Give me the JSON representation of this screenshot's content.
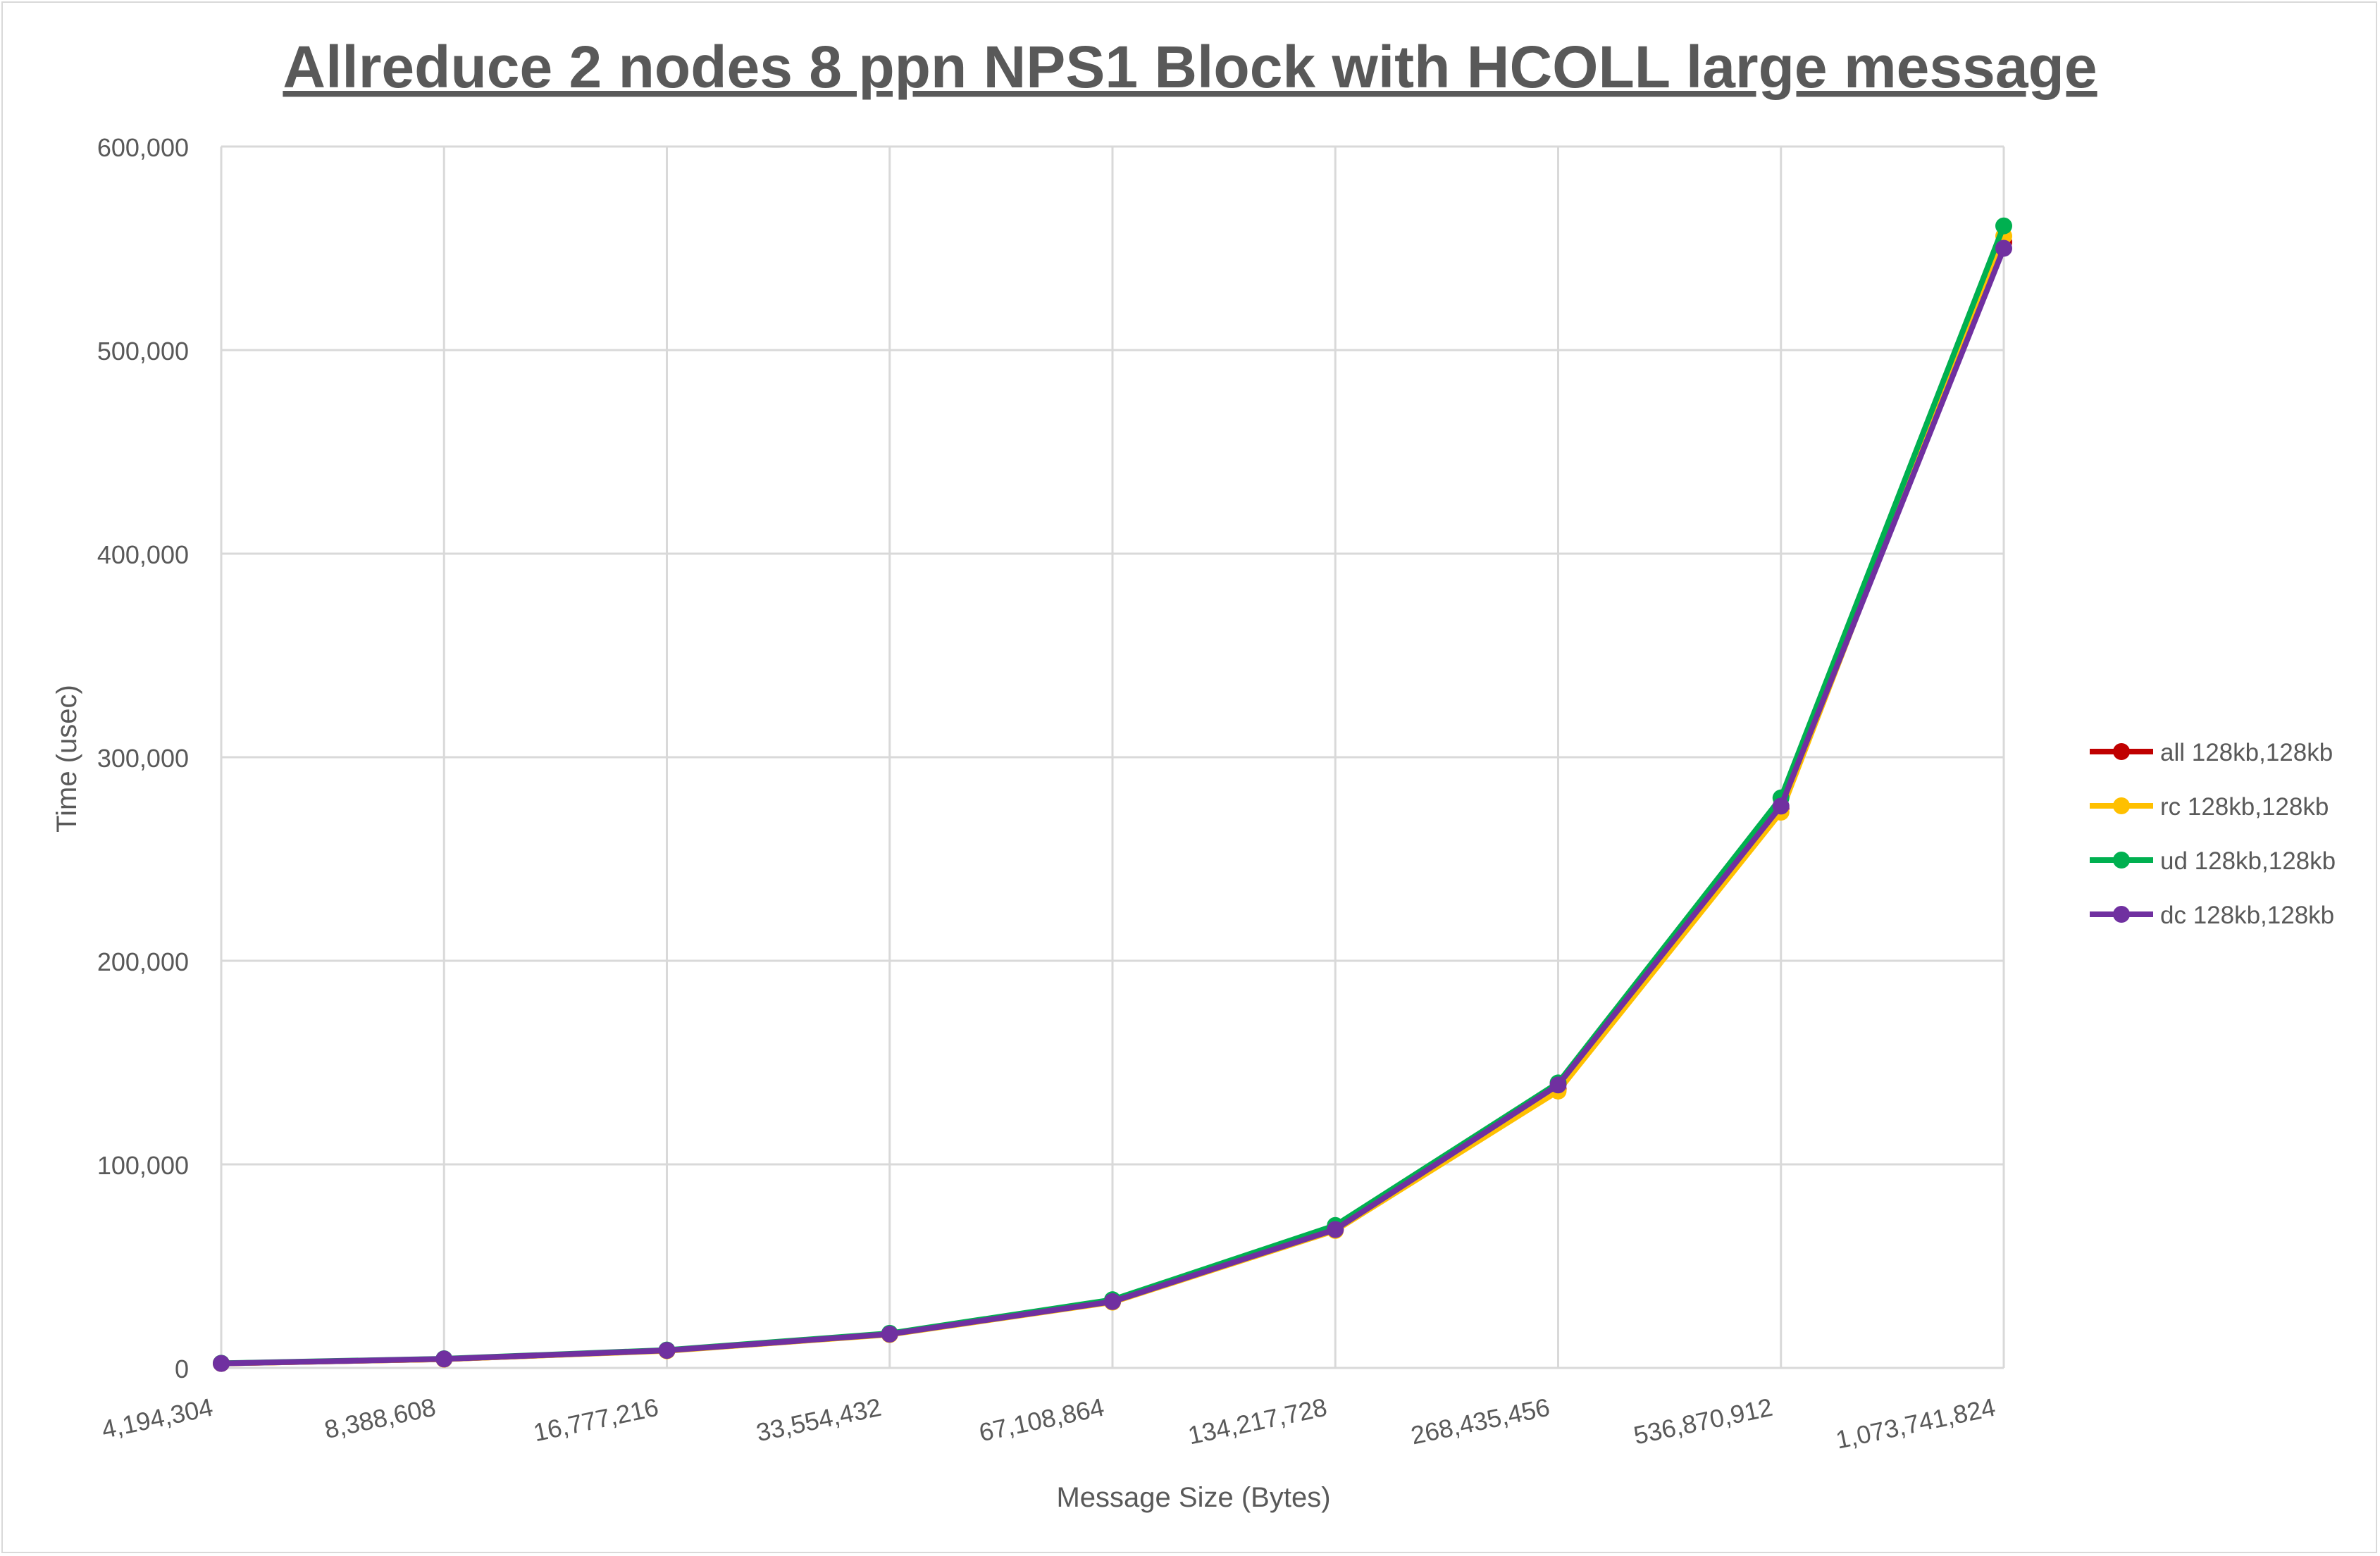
{
  "chart_data": {
    "type": "line",
    "title": "Allreduce 2 nodes 8 ppn NPS1 Block with HCOLL large message",
    "xlabel": "Message Size (Bytes)",
    "ylabel": "Time (usec)",
    "categories": [
      "4,194,304",
      "8,388,608",
      "16,777,216",
      "33,554,432",
      "67,108,864",
      "134,217,728",
      "268,435,456",
      "536,870,912",
      "1,073,741,824"
    ],
    "ylim": [
      0,
      600000
    ],
    "yticks": [
      0,
      100000,
      200000,
      300000,
      400000,
      500000,
      600000
    ],
    "ytick_labels": [
      "0",
      "100,000",
      "200,000",
      "300,000",
      "400,000",
      "500,000",
      "600,000"
    ],
    "grid": true,
    "legend_position": "right",
    "series": [
      {
        "name": "all 128kb,128kb",
        "color": "#c00000",
        "values": [
          2200,
          4300,
          8500,
          16500,
          32500,
          68000,
          137000,
          275000,
          553000
        ]
      },
      {
        "name": "rc 128kb,128kb",
        "color": "#ffc000",
        "values": [
          2200,
          4300,
          8400,
          16400,
          32300,
          67500,
          136000,
          273000,
          556000
        ]
      },
      {
        "name": "ud 128kb,128kb",
        "color": "#00b050",
        "values": [
          2300,
          4500,
          8800,
          17000,
          33500,
          70000,
          140000,
          280000,
          561000
        ]
      },
      {
        "name": "dc 128kb,128kb",
        "color": "#7030a0",
        "values": [
          2200,
          4400,
          8600,
          16600,
          32600,
          68000,
          139000,
          276000,
          550000
        ]
      }
    ]
  }
}
